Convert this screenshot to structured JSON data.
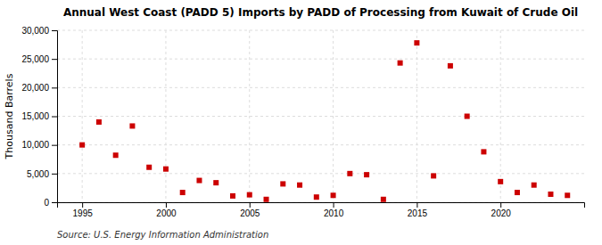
{
  "chart_data": {
    "type": "scatter",
    "title": "Annual West Coast (PADD 5) Imports by PADD of Processing from Kuwait of Crude Oil",
    "y_label": "Thousand Barrels",
    "annotations": [
      "Source: U.S. Energy Information Administration"
    ],
    "color": "#cc0000",
    "marker": "square",
    "grid": true,
    "xlim": [
      1993.5,
      2025
    ],
    "ylim": [
      0,
      30000
    ],
    "xticks": [
      1995,
      2000,
      2005,
      2010,
      2015,
      2020
    ],
    "yticks": [
      0,
      {
        "value": 5000,
        "label": "5,000"
      },
      {
        "value": 10000,
        "label": "10,000"
      },
      {
        "value": 15000,
        "label": "15,000"
      },
      {
        "value": 20000,
        "label": "20,000"
      },
      {
        "value": 25000,
        "label": "25,000"
      },
      {
        "value": 30000,
        "label": "30,000"
      }
    ],
    "x": [
      1995,
      1996,
      1997,
      1998,
      1999,
      2000,
      2001,
      2002,
      2003,
      2004,
      2005,
      2006,
      2007,
      2008,
      2009,
      2010,
      2011,
      2012,
      2013,
      2014,
      2015,
      2016,
      2017,
      2018,
      2019,
      2020,
      2021,
      2022,
      2023,
      2024
    ],
    "values": [
      10000,
      14000,
      8200,
      13300,
      6100,
      5800,
      1700,
      3800,
      3400,
      1100,
      1300,
      500,
      3200,
      3000,
      900,
      1200,
      5000,
      4800,
      500,
      24300,
      27800,
      4600,
      23800,
      15000,
      8800,
      3600,
      1700,
      3000,
      1400,
      1200
    ]
  }
}
